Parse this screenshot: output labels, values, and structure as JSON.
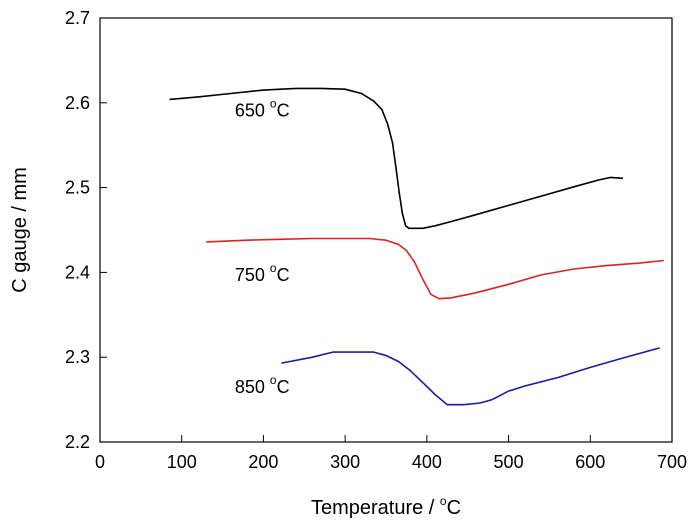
{
  "chart_data": {
    "type": "line",
    "title": "",
    "xlabel_base": "Temperature / ",
    "xlabel_sup": "o",
    "xlabel_unit": "C",
    "ylabel": "C gauge / mm",
    "xlim": [
      0,
      700
    ],
    "ylim": [
      2.2,
      2.7
    ],
    "xticks": [
      0,
      100,
      200,
      300,
      400,
      500,
      600,
      700
    ],
    "yticks": [
      2.2,
      2.3,
      2.4,
      2.5,
      2.6,
      2.7
    ],
    "grid": false,
    "series": [
      {
        "label_base": "650 ",
        "label_sup": "o",
        "label_unit": "C",
        "label_x": 165,
        "label_y": 2.584,
        "color": "#000000",
        "x": [
          85,
          120,
          160,
          200,
          240,
          270,
          300,
          320,
          335,
          345,
          352,
          358,
          362,
          366,
          370,
          374,
          378,
          385,
          395,
          410,
          430,
          460,
          500,
          540,
          580,
          610,
          625,
          640
        ],
        "y": [
          2.604,
          2.607,
          2.611,
          2.615,
          2.617,
          2.617,
          2.616,
          2.611,
          2.602,
          2.592,
          2.575,
          2.553,
          2.525,
          2.495,
          2.47,
          2.455,
          2.452,
          2.452,
          2.452,
          2.455,
          2.46,
          2.468,
          2.479,
          2.49,
          2.501,
          2.509,
          2.512,
          2.511
        ]
      },
      {
        "label_base": "750 ",
        "label_sup": "o",
        "label_unit": "C",
        "label_x": 165,
        "label_y": 2.39,
        "color": "#e02020",
        "x": [
          130,
          180,
          220,
          260,
          300,
          330,
          350,
          365,
          375,
          385,
          395,
          405,
          415,
          430,
          460,
          500,
          540,
          580,
          620,
          660,
          690
        ],
        "y": [
          2.436,
          2.438,
          2.439,
          2.44,
          2.44,
          2.44,
          2.438,
          2.433,
          2.426,
          2.412,
          2.392,
          2.374,
          2.369,
          2.37,
          2.376,
          2.386,
          2.397,
          2.404,
          2.408,
          2.411,
          2.414
        ]
      },
      {
        "label_base": "850 ",
        "label_sup": "o",
        "label_unit": "C",
        "label_x": 165,
        "label_y": 2.258,
        "color": "#1a1aa8",
        "x": [
          222,
          260,
          285,
          310,
          335,
          350,
          365,
          380,
          395,
          410,
          425,
          445,
          465,
          480,
          500,
          520,
          560,
          600,
          640,
          685
        ],
        "y": [
          2.293,
          2.3,
          2.306,
          2.306,
          2.306,
          2.302,
          2.295,
          2.284,
          2.27,
          2.256,
          2.244,
          2.244,
          2.246,
          2.25,
          2.26,
          2.266,
          2.276,
          2.288,
          2.299,
          2.311
        ]
      }
    ]
  }
}
